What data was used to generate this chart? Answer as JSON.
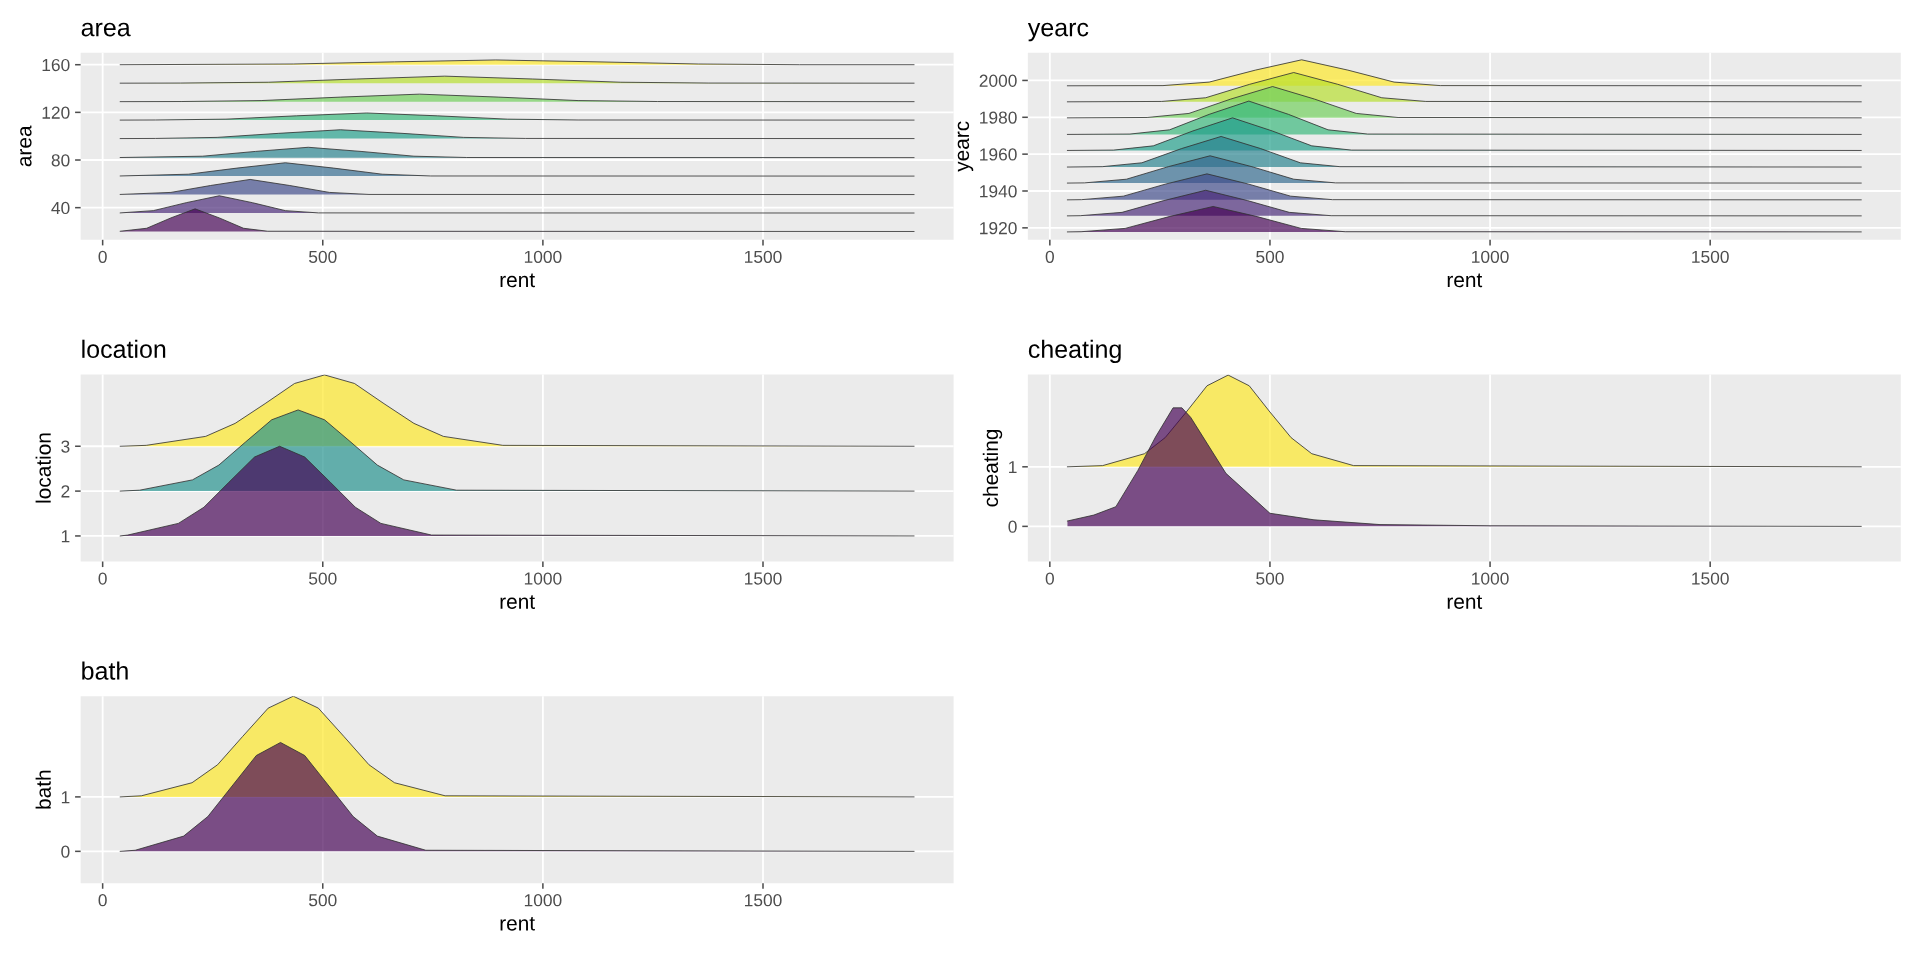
{
  "chart_data": [
    {
      "type": "area",
      "title": "area",
      "xlabel": "rent",
      "ylabel": "area",
      "xlim": [
        -50,
        1933
      ],
      "xticks": [
        0,
        500,
        1000,
        1500
      ],
      "ylim": [
        13,
        170
      ],
      "yticks": [
        40,
        80,
        120,
        160
      ],
      "grid": true,
      "series": [
        {
          "color": "#440154",
          "x": [
            40,
            100,
            155,
            210,
            265,
            320,
            375,
            1843
          ],
          "values": [
            20.2,
            22.7,
            31.4,
            39,
            31.4,
            22.7,
            20.2,
            20
          ]
        },
        {
          "color": "#482878",
          "x": [
            40,
            115,
            190,
            265,
            340,
            415,
            490,
            1843
          ],
          "values": [
            35.6,
            37.5,
            44.2,
            50,
            44.2,
            37.5,
            35.6,
            35.5
          ]
        },
        {
          "color": "#3e4989",
          "x": [
            40,
            155,
            245,
            335,
            425,
            515,
            605,
            1843
          ],
          "values": [
            51.1,
            52.8,
            58.6,
            63.7,
            58.6,
            52.8,
            51.1,
            51
          ]
        },
        {
          "color": "#31688e",
          "x": [
            40,
            195,
            305,
            415,
            525,
            635,
            745,
            1843
          ],
          "values": [
            66.6,
            68.1,
            73.2,
            77.7,
            73.2,
            68.1,
            66.6,
            66.5
          ]
        },
        {
          "color": "#26828e",
          "x": [
            40,
            227,
            347,
            467,
            587,
            707,
            827,
            1843
          ],
          "values": [
            82.1,
            83.2,
            87.2,
            90.7,
            87.2,
            83.2,
            82.1,
            82
          ]
        },
        {
          "color": "#1f9e89",
          "x": [
            40,
            120,
            260,
            400,
            540,
            680,
            820,
            960,
            1843
          ],
          "values": [
            98,
            98.1,
            99,
            102.4,
            105.4,
            102.4,
            99,
            98.1,
            98
          ]
        },
        {
          "color": "#35b779",
          "x": [
            40,
            120,
            280,
            440,
            600,
            760,
            920,
            1080,
            1843
          ],
          "values": [
            113.5,
            113.6,
            114.3,
            117.1,
            119.5,
            117.1,
            114.3,
            113.6,
            113.5
          ]
        },
        {
          "color": "#6ece58",
          "x": [
            40,
            180,
            360,
            540,
            720,
            900,
            1080,
            1260,
            1843
          ],
          "values": [
            129,
            129.1,
            129.9,
            132.8,
            135.3,
            132.8,
            129.9,
            129.1,
            129
          ]
        },
        {
          "color": "#b5de2b",
          "x": [
            40,
            177,
            377,
            577,
            777,
            977,
            1177,
            1377,
            1843
          ],
          "values": [
            144.5,
            144.6,
            145.3,
            148,
            150.4,
            148,
            145.3,
            144.6,
            144.5
          ]
        },
        {
          "color": "#fde725",
          "x": [
            40,
            433,
            663,
            893,
            1123,
            1353,
            1583,
            1843
          ],
          "values": [
            160,
            160.6,
            162.4,
            164,
            162.4,
            160.6,
            160,
            160
          ]
        }
      ]
    },
    {
      "type": "area",
      "title": "yearc",
      "xlabel": "rent",
      "ylabel": "yearc",
      "xlim": [
        -50,
        1933
      ],
      "xticks": [
        0,
        500,
        1000,
        1500
      ],
      "ylim": [
        1913.5,
        2015
      ],
      "yticks": [
        1920,
        1940,
        1960,
        1980,
        2000
      ],
      "grid": true,
      "series": [
        {
          "color": "#440154",
          "x": [
            40,
            71,
            171,
            271,
            371,
            471,
            571,
            671,
            1843
          ],
          "values": [
            1917.8,
            1917.9,
            1919.7,
            1926.1,
            1931.6,
            1926.1,
            1919.7,
            1917.9,
            1917.8
          ]
        },
        {
          "color": "#482878",
          "x": [
            40,
            69,
            164,
            259,
            354,
            449,
            544,
            639,
            1843
          ],
          "values": [
            1926.5,
            1926.6,
            1928.4,
            1934.8,
            1940.4,
            1934.8,
            1928.4,
            1926.6,
            1926.5
          ]
        },
        {
          "color": "#3e4989",
          "x": [
            40,
            72,
            167,
            262,
            357,
            452,
            547,
            642,
            1843
          ],
          "values": [
            1935.2,
            1935.3,
            1937.2,
            1943.7,
            1949.3,
            1943.7,
            1937.2,
            1935.3,
            1935.2
          ]
        },
        {
          "color": "#31688e",
          "x": [
            40,
            79,
            174,
            269,
            364,
            459,
            554,
            649,
            1843
          ],
          "values": [
            1944.3,
            1944.4,
            1946.4,
            1953.2,
            1959.1,
            1953.2,
            1946.4,
            1944.4,
            1944.3
          ]
        },
        {
          "color": "#26828e",
          "x": [
            40,
            119,
            209,
            299,
            389,
            479,
            569,
            659,
            1843
          ],
          "values": [
            1953,
            1953.2,
            1955.3,
            1963,
            1969.6,
            1963,
            1955.3,
            1953.2,
            1953
          ]
        },
        {
          "color": "#1f9e89",
          "x": [
            40,
            145,
            235,
            325,
            415,
            505,
            595,
            685,
            1843
          ],
          "values": [
            1962,
            1962.2,
            1964.5,
            1972.6,
            1979.7,
            1972.6,
            1964.5,
            1962.2,
            1962
          ]
        },
        {
          "color": "#35b779",
          "x": [
            40,
            182,
            272,
            362,
            452,
            542,
            632,
            722,
            1843
          ],
          "values": [
            1970.7,
            1970.9,
            1973.2,
            1981.6,
            1988.8,
            1981.6,
            1973.2,
            1970.9,
            1970.7
          ]
        },
        {
          "color": "#6ece58",
          "x": [
            40,
            221,
            316,
            411,
            506,
            601,
            696,
            791,
            1843
          ],
          "values": [
            1979.7,
            1979.9,
            1982.1,
            1989.9,
            1996.7,
            1989.9,
            1982.1,
            1979.9,
            1979.7
          ]
        },
        {
          "color": "#b5de2b",
          "x": [
            40,
            254,
            354,
            454,
            554,
            654,
            754,
            854,
            1843
          ],
          "values": [
            1988.4,
            1988.6,
            1990.6,
            1997.9,
            2004.3,
            1997.9,
            1990.6,
            1988.6,
            1988.4
          ]
        },
        {
          "color": "#fde725",
          "x": [
            40,
            257,
            362,
            467,
            572,
            677,
            782,
            887,
            1843
          ],
          "values": [
            1997.1,
            1997.2,
            1999.1,
            2005.6,
            2011.2,
            2005.6,
            1999.1,
            1997.2,
            1997.1
          ]
        }
      ]
    },
    {
      "type": "area",
      "title": "location",
      "xlabel": "rent",
      "ylabel": "location",
      "xlim": [
        -50,
        1933
      ],
      "xticks": [
        0,
        500,
        1000,
        1500
      ],
      "ylim": [
        0.43,
        4.6
      ],
      "yticks": [
        1,
        2,
        3
      ],
      "grid": true,
      "series": [
        {
          "color": "#440154",
          "x": [
            40,
            57,
            172,
            230,
            287,
            345,
            402,
            459,
            517,
            574,
            632,
            747,
            1843
          ],
          "values": [
            1,
            1.02,
            1.28,
            1.64,
            2.2,
            2.76,
            3,
            2.76,
            2.2,
            1.64,
            1.28,
            1.02,
            1
          ]
        },
        {
          "color": "#21908c",
          "x": [
            40,
            84,
            204,
            264,
            324,
            384,
            444,
            504,
            564,
            624,
            684,
            804,
            1843
          ],
          "values": [
            2,
            2.02,
            2.25,
            2.58,
            3.09,
            3.59,
            3.81,
            3.59,
            3.09,
            2.58,
            2.25,
            2.02,
            2
          ]
        },
        {
          "color": "#fde725",
          "x": [
            40,
            99,
            234,
            301,
            369,
            436,
            504,
            572,
            639,
            707,
            774,
            909,
            1843
          ],
          "values": [
            3,
            3.02,
            3.22,
            3.51,
            3.95,
            4.4,
            4.59,
            4.4,
            3.95,
            3.51,
            3.22,
            3.02,
            3
          ]
        }
      ]
    },
    {
      "type": "area",
      "title": "cheating",
      "xlabel": "rent",
      "ylabel": "cheating",
      "xlim": [
        -50,
        1933
      ],
      "xticks": [
        0,
        500,
        1000,
        1500
      ],
      "ylim": [
        -0.59,
        2.55
      ],
      "yticks": [
        0,
        1
      ],
      "grid": true,
      "series": [
        {
          "color": "#440154",
          "x": [
            40,
            100,
            150,
            200,
            240,
            280,
            300,
            320,
            400,
            500,
            600,
            750,
            1000,
            1843
          ],
          "values": [
            0.09,
            0.19,
            0.33,
            0.94,
            1.5,
            1.99,
            1.99,
            1.83,
            0.89,
            0.22,
            0.11,
            0.03,
            0.01,
            0
          ]
        },
        {
          "color": "#fde725",
          "x": [
            40,
            120,
            215,
            262,
            310,
            357,
            405,
            453,
            500,
            548,
            595,
            690,
            1843
          ],
          "values": [
            1,
            1.02,
            1.22,
            1.49,
            1.92,
            2.36,
            2.54,
            2.36,
            1.92,
            1.49,
            1.22,
            1.02,
            1
          ]
        }
      ]
    },
    {
      "type": "area",
      "title": "bath",
      "xlabel": "rent",
      "ylabel": "bath",
      "xlim": [
        -50,
        1933
      ],
      "xticks": [
        0,
        500,
        1000,
        1500
      ],
      "ylim": [
        -0.585,
        2.85
      ],
      "yticks": [
        0,
        1
      ],
      "grid": true,
      "series": [
        {
          "color": "#440154",
          "x": [
            40,
            74,
            184,
            239,
            294,
            349,
            404,
            459,
            514,
            569,
            624,
            734,
            1843
          ],
          "values": [
            0,
            0.02,
            0.28,
            0.64,
            1.2,
            1.76,
            2,
            1.76,
            1.2,
            0.64,
            0.28,
            0.02,
            0
          ]
        },
        {
          "color": "#fde725",
          "x": [
            40,
            88,
            203,
            261,
            318,
            376,
            433,
            490,
            548,
            605,
            663,
            778,
            1843
          ],
          "values": [
            1,
            1.02,
            1.26,
            1.59,
            2.11,
            2.63,
            2.85,
            2.63,
            2.11,
            1.59,
            1.26,
            1.02,
            1
          ]
        }
      ]
    }
  ]
}
